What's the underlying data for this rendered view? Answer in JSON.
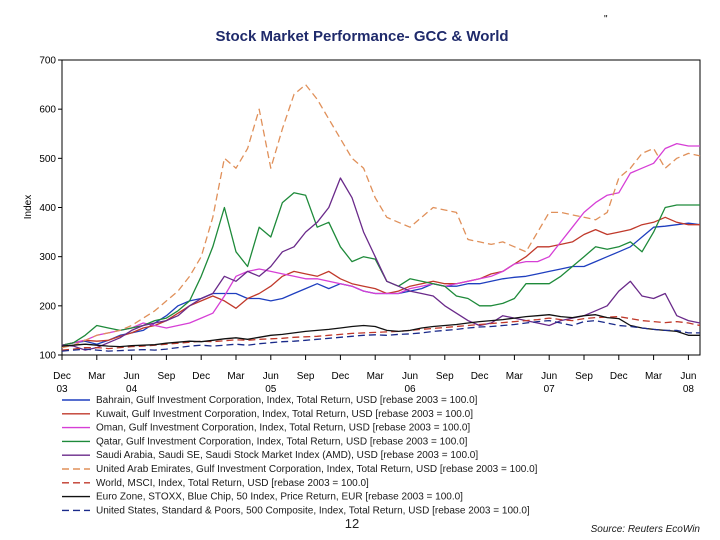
{
  "chart_data": {
    "type": "line",
    "title": "Stock Market Performance- GCC & World",
    "ylabel": "Index",
    "ylim": [
      100,
      700
    ],
    "yticks": [
      100,
      200,
      300,
      400,
      500,
      600,
      700
    ],
    "x": [
      "2003-12",
      "2004-01",
      "2004-02",
      "2004-03",
      "2004-04",
      "2004-05",
      "2004-06",
      "2004-07",
      "2004-08",
      "2004-09",
      "2004-10",
      "2004-11",
      "2004-12",
      "2005-01",
      "2005-02",
      "2005-03",
      "2005-04",
      "2005-05",
      "2005-06",
      "2005-07",
      "2005-08",
      "2005-09",
      "2005-10",
      "2005-11",
      "2005-12",
      "2006-01",
      "2006-02",
      "2006-03",
      "2006-04",
      "2006-05",
      "2006-06",
      "2006-07",
      "2006-08",
      "2006-09",
      "2006-10",
      "2006-11",
      "2006-12",
      "2007-01",
      "2007-02",
      "2007-03",
      "2007-04",
      "2007-05",
      "2007-06",
      "2007-07",
      "2007-08",
      "2007-09",
      "2007-10",
      "2007-11",
      "2007-12",
      "2008-01",
      "2008-02",
      "2008-03",
      "2008-04",
      "2008-05",
      "2008-06",
      "2008-07"
    ],
    "xticks": [
      {
        "date": "2003-12",
        "month": "Dec",
        "year": "03"
      },
      {
        "date": "2004-03",
        "month": "Mar",
        "year": ""
      },
      {
        "date": "2004-06",
        "month": "Jun",
        "year": "04"
      },
      {
        "date": "2004-09",
        "month": "Sep",
        "year": ""
      },
      {
        "date": "2004-12",
        "month": "Dec",
        "year": ""
      },
      {
        "date": "2005-03",
        "month": "Mar",
        "year": ""
      },
      {
        "date": "2005-06",
        "month": "Jun",
        "year": "05"
      },
      {
        "date": "2005-09",
        "month": "Sep",
        "year": ""
      },
      {
        "date": "2005-12",
        "month": "Dec",
        "year": ""
      },
      {
        "date": "2006-03",
        "month": "Mar",
        "year": ""
      },
      {
        "date": "2006-06",
        "month": "Jun",
        "year": "06"
      },
      {
        "date": "2006-09",
        "month": "Sep",
        "year": ""
      },
      {
        "date": "2006-12",
        "month": "Dec",
        "year": ""
      },
      {
        "date": "2007-03",
        "month": "Mar",
        "year": ""
      },
      {
        "date": "2007-06",
        "month": "Jun",
        "year": "07"
      },
      {
        "date": "2007-09",
        "month": "Sep",
        "year": ""
      },
      {
        "date": "2007-12",
        "month": "Dec",
        "year": ""
      },
      {
        "date": "2008-03",
        "month": "Mar",
        "year": ""
      },
      {
        "date": "2008-06",
        "month": "Jun",
        "year": "08"
      }
    ],
    "legend_position": "bottom",
    "series": [
      {
        "name": "Bahrain, Gulf Investment Corporation, Index, Total Return, USD [rebase 2003 = 100.0]",
        "color": "#1f3fbf",
        "dash": "solid",
        "values": [
          120,
          125,
          128,
          122,
          130,
          140,
          145,
          150,
          165,
          180,
          200,
          210,
          215,
          225,
          225,
          225,
          215,
          215,
          210,
          215,
          225,
          235,
          245,
          235,
          245,
          240,
          230,
          225,
          225,
          225,
          230,
          235,
          245,
          240,
          240,
          245,
          245,
          250,
          255,
          258,
          260,
          265,
          270,
          275,
          280,
          280,
          290,
          300,
          310,
          320,
          340,
          360,
          362,
          365,
          368,
          365
        ]
      },
      {
        "name": "Kuwait, Gulf Investment Corporation, Index, Total Return, USD [rebase 2003 = 100.0]",
        "color": "#c0392b",
        "dash": "solid",
        "values": [
          120,
          125,
          130,
          128,
          130,
          138,
          145,
          155,
          160,
          170,
          185,
          200,
          210,
          220,
          210,
          195,
          215,
          225,
          240,
          260,
          270,
          265,
          260,
          270,
          255,
          245,
          240,
          235,
          225,
          230,
          240,
          245,
          250,
          245,
          245,
          250,
          255,
          265,
          270,
          285,
          300,
          320,
          320,
          325,
          330,
          345,
          355,
          345,
          350,
          355,
          365,
          370,
          380,
          370,
          365,
          365
        ]
      },
      {
        "name": "Oman, Gulf Investment Corporation, Index, Total Return, USD [rebase 2003 = 100.0]",
        "color": "#d63fd6",
        "dash": "solid",
        "values": [
          120,
          125,
          130,
          140,
          145,
          150,
          155,
          165,
          160,
          155,
          160,
          165,
          175,
          185,
          220,
          260,
          270,
          275,
          270,
          265,
          260,
          255,
          255,
          250,
          245,
          240,
          230,
          225,
          225,
          225,
          235,
          240,
          245,
          240,
          245,
          250,
          255,
          260,
          270,
          285,
          290,
          290,
          300,
          330,
          360,
          390,
          410,
          425,
          430,
          470,
          480,
          490,
          520,
          530,
          525,
          525
        ]
      },
      {
        "name": "Qatar, Gulf Investment Corporation, Index, Total Return, USD [rebase 2003 = 100.0]",
        "color": "#1e8a3a",
        "dash": "solid",
        "values": [
          120,
          125,
          140,
          160,
          155,
          150,
          155,
          160,
          170,
          175,
          190,
          210,
          260,
          320,
          400,
          310,
          280,
          360,
          340,
          410,
          430,
          425,
          360,
          370,
          320,
          290,
          300,
          295,
          250,
          240,
          255,
          250,
          245,
          240,
          220,
          215,
          200,
          200,
          205,
          215,
          245,
          245,
          245,
          260,
          280,
          300,
          320,
          315,
          320,
          330,
          310,
          350,
          400,
          405,
          405,
          405
        ]
      },
      {
        "name": "Saudi Arabia, Saudi SE, Saudi Stock Market Index (AMD), USD [rebase 2003 = 100.0]",
        "color": "#6a2a8a",
        "dash": "solid",
        "values": [
          120,
          118,
          110,
          115,
          125,
          135,
          150,
          160,
          165,
          170,
          180,
          200,
          215,
          225,
          260,
          250,
          270,
          260,
          280,
          310,
          320,
          350,
          370,
          400,
          460,
          420,
          350,
          300,
          250,
          240,
          230,
          225,
          220,
          200,
          185,
          170,
          160,
          165,
          180,
          175,
          170,
          165,
          160,
          170,
          175,
          180,
          190,
          200,
          230,
          250,
          220,
          215,
          225,
          180,
          170,
          165
        ]
      },
      {
        "name": "United Arab Emirates, Gulf Investment Corporation, Index, Total Return, USD [rebase 2003 = 100.0]",
        "color": "#e0905a",
        "dash": "dash",
        "values": [
          115,
          120,
          130,
          140,
          145,
          150,
          160,
          175,
          190,
          210,
          230,
          260,
          300,
          380,
          500,
          480,
          520,
          600,
          480,
          560,
          630,
          650,
          620,
          580,
          540,
          500,
          480,
          420,
          380,
          370,
          360,
          380,
          400,
          395,
          390,
          335,
          330,
          325,
          330,
          320,
          310,
          350,
          390,
          390,
          385,
          380,
          375,
          390,
          460,
          480,
          510,
          520,
          480,
          500,
          510,
          505
        ]
      },
      {
        "name": "World, MSCI, Index, Total Return, USD [rebase 2003 = 100.0]",
        "color": "#c0392b",
        "dash": "dash",
        "values": [
          110,
          112,
          115,
          115,
          113,
          115,
          117,
          118,
          120,
          122,
          124,
          126,
          128,
          127,
          129,
          131,
          130,
          132,
          133,
          134,
          136,
          137,
          138,
          140,
          142,
          144,
          145,
          146,
          147,
          148,
          150,
          152,
          154,
          156,
          158,
          160,
          162,
          164,
          166,
          168,
          170,
          172,
          175,
          172,
          170,
          174,
          176,
          177,
          178,
          174,
          170,
          168,
          166,
          168,
          165,
          160
        ]
      },
      {
        "name": "Euro Zone, STOXX, Blue Chip, 50 Index, Price Return, EUR [rebase 2003 = 100.0]",
        "color": "#111111",
        "dash": "solid",
        "values": [
          118,
          120,
          122,
          120,
          118,
          117,
          119,
          120,
          121,
          124,
          126,
          128,
          127,
          130,
          133,
          135,
          132,
          136,
          140,
          142,
          145,
          148,
          150,
          152,
          155,
          158,
          160,
          158,
          150,
          148,
          150,
          155,
          158,
          160,
          162,
          165,
          168,
          170,
          172,
          175,
          178,
          180,
          182,
          178,
          176,
          180,
          182,
          176,
          174,
          160,
          155,
          152,
          150,
          148,
          140,
          140
        ]
      },
      {
        "name": "United States, Standard & Poors, 500 Composite, Index, Total Return, USD [rebase 2003 = 100.0]",
        "color": "#1a2a8a",
        "dash": "dash",
        "values": [
          108,
          110,
          112,
          110,
          108,
          109,
          110,
          111,
          110,
          112,
          115,
          118,
          120,
          118,
          120,
          122,
          120,
          123,
          125,
          127,
          128,
          130,
          132,
          134,
          136,
          138,
          140,
          141,
          140,
          142,
          143,
          145,
          148,
          150,
          152,
          155,
          157,
          158,
          160,
          162,
          165,
          168,
          170,
          165,
          160,
          168,
          170,
          165,
          160,
          158,
          155,
          152,
          150,
          150,
          145,
          145
        ]
      }
    ],
    "footer": {
      "page_number": "12",
      "source": "Source: Reuters EcoWin"
    },
    "header_mark": "\""
  }
}
